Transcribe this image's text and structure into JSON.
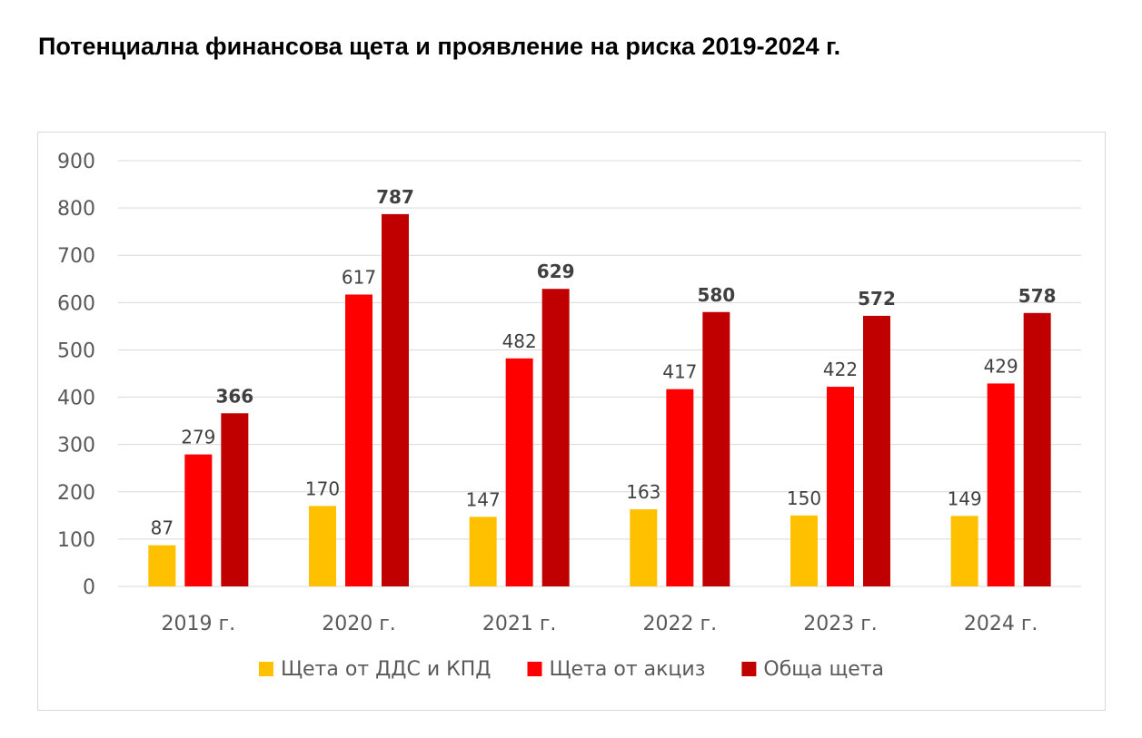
{
  "title": "Потенциална финансова щета и проявление на риска 2019-2024 г.",
  "chart_data": {
    "type": "bar",
    "categories": [
      "2019 г.",
      "2020 г.",
      "2021 г.",
      "2022 г.",
      "2023 г.",
      "2024 г."
    ],
    "series": [
      {
        "name": "Щета от ДДС и КПД",
        "values": [
          87,
          170,
          147,
          163,
          150,
          149
        ],
        "color": "#FFC000",
        "label_bold": false
      },
      {
        "name": "Щета от акциз",
        "values": [
          279,
          617,
          482,
          417,
          422,
          429
        ],
        "color": "#FF0000",
        "label_bold": false
      },
      {
        "name": "Обща щета",
        "values": [
          366,
          787,
          629,
          580,
          572,
          578
        ],
        "color": "#C00000",
        "label_bold": true
      }
    ],
    "ylim": [
      0,
      900
    ],
    "yticks": [
      0,
      100,
      200,
      300,
      400,
      500,
      600,
      700,
      800,
      900
    ],
    "grid": true,
    "legend": "bottom",
    "xlabel": "",
    "ylabel": ""
  }
}
